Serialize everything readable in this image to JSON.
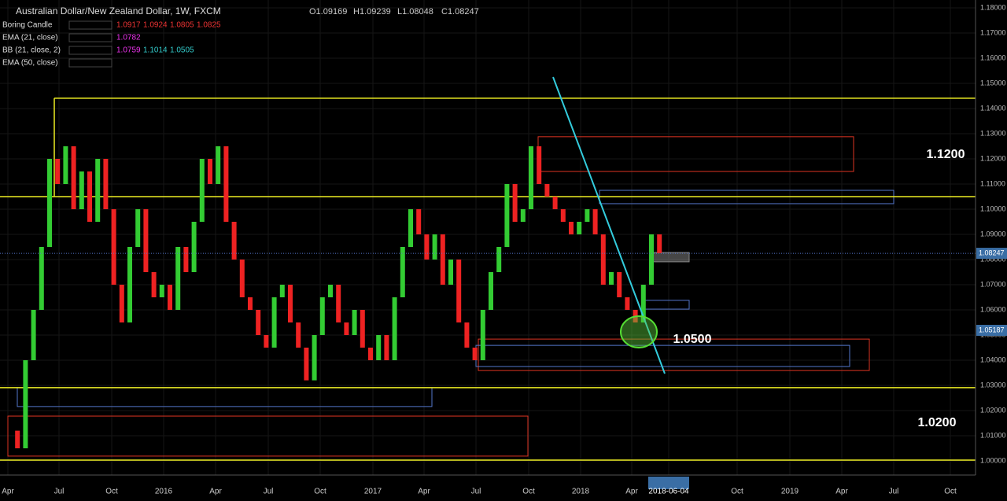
{
  "header": {
    "symbol": "Australian Dollar/New Zealand Dollar, 1W, FXCM",
    "ohlc": [
      "O1.09169",
      "H1.09239",
      "L1.08048",
      "C1.08247"
    ]
  },
  "indicators": [
    {
      "name": "Boring Candle",
      "values": [
        "1.0917",
        "1.0924",
        "1.0805",
        "1.0825"
      ]
    },
    {
      "name": "EMA (21, close)",
      "values": [
        "1.0782"
      ]
    },
    {
      "name": "BB (21, close, 2)",
      "values": [
        "1.0759",
        "1.1014",
        "1.0505"
      ]
    },
    {
      "name": "EMA (50, close)",
      "values": []
    }
  ],
  "chart": {
    "ylim": [
      1.0,
      1.18
    ],
    "yticks": [
      {
        "value": 1.18,
        "label": "1.18000"
      },
      {
        "value": 1.17,
        "label": "1.17000"
      },
      {
        "value": 1.16,
        "label": "1.16000"
      },
      {
        "value": 1.15,
        "label": "1.15000"
      },
      {
        "value": 1.14,
        "label": "1.14000"
      },
      {
        "value": 1.13,
        "label": "1.13000"
      },
      {
        "value": 1.12,
        "label": "1.12000"
      },
      {
        "value": 1.11,
        "label": "1.11000"
      },
      {
        "value": 1.1,
        "label": "1.10000"
      },
      {
        "value": 1.09,
        "label": "1.09000"
      },
      {
        "value": 1.08,
        "label": "1.08000"
      },
      {
        "value": 1.07,
        "label": "1.07000"
      },
      {
        "value": 1.06,
        "label": "1.06000"
      },
      {
        "value": 1.05,
        "label": "1.05000"
      },
      {
        "value": 1.04,
        "label": "1.04000"
      },
      {
        "value": 1.03,
        "label": "1.03000"
      },
      {
        "value": 1.02,
        "label": "1.02000"
      },
      {
        "value": 1.01,
        "label": "1.01000"
      },
      {
        "value": 1.0,
        "label": "1.00000"
      }
    ],
    "time_labels": [
      "Apr",
      "Jul",
      "Oct",
      "2016",
      "Apr",
      "Jul",
      "Oct",
      "2017",
      "Apr",
      "Jul",
      "Oct",
      "2018",
      "Apr",
      "2018-06-04",
      "Oct",
      "2019",
      "Apr",
      "Jul",
      "Oct"
    ],
    "closes": [
      1.012,
      1.005,
      1.04,
      1.06,
      1.085,
      1.12,
      1.11,
      1.125,
      1.1,
      1.115,
      1.095,
      1.12,
      1.1,
      1.07,
      1.055,
      1.085,
      1.1,
      1.075,
      1.065,
      1.07,
      1.06,
      1.085,
      1.075,
      1.095,
      1.12,
      1.11,
      1.125,
      1.095,
      1.08,
      1.065,
      1.06,
      1.05,
      1.045,
      1.065,
      1.07,
      1.055,
      1.045,
      1.032,
      1.05,
      1.065,
      1.07,
      1.055,
      1.05,
      1.06,
      1.045,
      1.04,
      1.05,
      1.04,
      1.065,
      1.085,
      1.1,
      1.09,
      1.08,
      1.09,
      1.07,
      1.08,
      1.055,
      1.045,
      1.04,
      1.06,
      1.075,
      1.085,
      1.11,
      1.095,
      1.1,
      1.125,
      1.11,
      1.105,
      1.1,
      1.095,
      1.09,
      1.095,
      1.1,
      1.09,
      1.07,
      1.075,
      1.065,
      1.06,
      1.055,
      1.07,
      1.09,
      1.0825
    ],
    "levels": [
      1.1441,
      1.105,
      1.0291,
      1.0003
    ],
    "zones": [
      [
        1.1288,
        1.115
      ],
      [
        1.1075,
        1.1022
      ],
      [
        1.0828,
        1.0791
      ],
      [
        1.0638,
        1.0603
      ],
      [
        1.0484,
        1.0359
      ],
      [
        1.0459,
        1.0375
      ],
      [
        1.0291,
        1.0216
      ],
      [
        1.0178,
        1.0019
      ]
    ],
    "trendline": [
      1.1525,
      1.0347
    ],
    "price_tags": [
      {
        "value": 1.08247,
        "label": "1.08247"
      },
      {
        "value": 1.05187,
        "label": "1.05187"
      }
    ],
    "annotations": [
      "1.1200",
      "1.0500",
      "1.0200"
    ]
  }
}
